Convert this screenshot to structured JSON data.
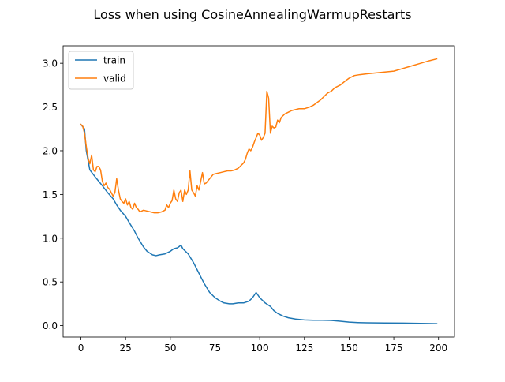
{
  "chart_data": {
    "type": "line",
    "title": "Loss when using CosineAnnealingWarmupRestarts",
    "xlabel": "",
    "ylabel": "",
    "xlim": [
      -9.95,
      208.95
    ],
    "ylim": [
      -0.13,
      3.2
    ],
    "xticks": [
      0,
      25,
      50,
      75,
      100,
      125,
      150,
      175,
      200
    ],
    "yticks": [
      0.0,
      0.5,
      1.0,
      1.5,
      2.0,
      2.5,
      3.0
    ],
    "xtick_labels": [
      "0",
      "25",
      "50",
      "75",
      "100",
      "125",
      "150",
      "175",
      "200"
    ],
    "ytick_labels": [
      "0.0",
      "0.5",
      "1.0",
      "1.5",
      "2.0",
      "2.5",
      "3.0"
    ],
    "grid": false,
    "legend": "upper-left",
    "series": [
      {
        "name": "train",
        "color": "#1f77b4",
        "points": [
          [
            0,
            2.3
          ],
          [
            2,
            2.25
          ],
          [
            3,
            2.0
          ],
          [
            5,
            1.78
          ],
          [
            8,
            1.7
          ],
          [
            10,
            1.65
          ],
          [
            12,
            1.6
          ],
          [
            15,
            1.52
          ],
          [
            18,
            1.45
          ],
          [
            20,
            1.38
          ],
          [
            22,
            1.32
          ],
          [
            25,
            1.25
          ],
          [
            27,
            1.18
          ],
          [
            30,
            1.08
          ],
          [
            32,
            1.0
          ],
          [
            35,
            0.9
          ],
          [
            37,
            0.85
          ],
          [
            40,
            0.81
          ],
          [
            42,
            0.8
          ],
          [
            44,
            0.81
          ],
          [
            47,
            0.82
          ],
          [
            50,
            0.85
          ],
          [
            52,
            0.88
          ],
          [
            54,
            0.89
          ],
          [
            56,
            0.92
          ],
          [
            57,
            0.88
          ],
          [
            60,
            0.82
          ],
          [
            63,
            0.72
          ],
          [
            66,
            0.6
          ],
          [
            69,
            0.48
          ],
          [
            72,
            0.38
          ],
          [
            75,
            0.32
          ],
          [
            78,
            0.28
          ],
          [
            80,
            0.26
          ],
          [
            83,
            0.25
          ],
          [
            85,
            0.25
          ],
          [
            88,
            0.26
          ],
          [
            91,
            0.26
          ],
          [
            94,
            0.28
          ],
          [
            96,
            0.32
          ],
          [
            98,
            0.38
          ],
          [
            100,
            0.32
          ],
          [
            103,
            0.26
          ],
          [
            106,
            0.22
          ],
          [
            108,
            0.17
          ],
          [
            110,
            0.14
          ],
          [
            113,
            0.11
          ],
          [
            116,
            0.09
          ],
          [
            120,
            0.075
          ],
          [
            125,
            0.065
          ],
          [
            130,
            0.062
          ],
          [
            135,
            0.062
          ],
          [
            140,
            0.06
          ],
          [
            145,
            0.05
          ],
          [
            150,
            0.04
          ],
          [
            155,
            0.035
          ],
          [
            160,
            0.032
          ],
          [
            170,
            0.03
          ],
          [
            180,
            0.029
          ],
          [
            190,
            0.026
          ],
          [
            199,
            0.022
          ]
        ]
      },
      {
        "name": "valid",
        "color": "#ff7f0e",
        "points": [
          [
            0,
            2.3
          ],
          [
            1,
            2.28
          ],
          [
            2,
            2.2
          ],
          [
            3,
            2.05
          ],
          [
            4,
            1.92
          ],
          [
            5,
            1.85
          ],
          [
            6,
            1.95
          ],
          [
            7,
            1.78
          ],
          [
            8,
            1.76
          ],
          [
            9,
            1.82
          ],
          [
            10,
            1.82
          ],
          [
            11,
            1.78
          ],
          [
            12,
            1.65
          ],
          [
            13,
            1.6
          ],
          [
            14,
            1.63
          ],
          [
            15,
            1.58
          ],
          [
            16,
            1.56
          ],
          [
            17,
            1.52
          ],
          [
            18,
            1.48
          ],
          [
            19,
            1.52
          ],
          [
            20,
            1.68
          ],
          [
            21,
            1.55
          ],
          [
            22,
            1.45
          ],
          [
            23,
            1.42
          ],
          [
            24,
            1.4
          ],
          [
            25,
            1.45
          ],
          [
            26,
            1.38
          ],
          [
            27,
            1.42
          ],
          [
            28,
            1.35
          ],
          [
            29,
            1.33
          ],
          [
            30,
            1.4
          ],
          [
            31,
            1.35
          ],
          [
            32,
            1.33
          ],
          [
            33,
            1.3
          ],
          [
            35,
            1.32
          ],
          [
            37,
            1.31
          ],
          [
            39,
            1.3
          ],
          [
            41,
            1.29
          ],
          [
            43,
            1.29
          ],
          [
            45,
            1.3
          ],
          [
            47,
            1.32
          ],
          [
            48,
            1.38
          ],
          [
            49,
            1.35
          ],
          [
            50,
            1.4
          ],
          [
            51,
            1.43
          ],
          [
            52,
            1.55
          ],
          [
            53,
            1.45
          ],
          [
            54,
            1.42
          ],
          [
            55,
            1.52
          ],
          [
            56,
            1.55
          ],
          [
            57,
            1.42
          ],
          [
            58,
            1.55
          ],
          [
            59,
            1.5
          ],
          [
            60,
            1.55
          ],
          [
            61,
            1.77
          ],
          [
            62,
            1.55
          ],
          [
            63,
            1.52
          ],
          [
            64,
            1.48
          ],
          [
            65,
            1.6
          ],
          [
            66,
            1.55
          ],
          [
            67,
            1.65
          ],
          [
            68,
            1.75
          ],
          [
            69,
            1.62
          ],
          [
            70,
            1.63
          ],
          [
            72,
            1.68
          ],
          [
            74,
            1.73
          ],
          [
            76,
            1.74
          ],
          [
            78,
            1.75
          ],
          [
            80,
            1.76
          ],
          [
            82,
            1.77
          ],
          [
            84,
            1.77
          ],
          [
            86,
            1.78
          ],
          [
            88,
            1.8
          ],
          [
            90,
            1.84
          ],
          [
            91,
            1.86
          ],
          [
            92,
            1.9
          ],
          [
            93,
            1.97
          ],
          [
            94,
            2.02
          ],
          [
            95,
            2.0
          ],
          [
            96,
            2.04
          ],
          [
            97,
            2.1
          ],
          [
            98,
            2.15
          ],
          [
            99,
            2.2
          ],
          [
            100,
            2.18
          ],
          [
            101,
            2.12
          ],
          [
            102,
            2.15
          ],
          [
            103,
            2.2
          ],
          [
            104,
            2.68
          ],
          [
            105,
            2.6
          ],
          [
            106,
            2.2
          ],
          [
            107,
            2.28
          ],
          [
            108,
            2.26
          ],
          [
            109,
            2.27
          ],
          [
            110,
            2.35
          ],
          [
            111,
            2.32
          ],
          [
            112,
            2.38
          ],
          [
            114,
            2.42
          ],
          [
            116,
            2.44
          ],
          [
            118,
            2.46
          ],
          [
            120,
            2.47
          ],
          [
            122,
            2.48
          ],
          [
            125,
            2.48
          ],
          [
            128,
            2.5
          ],
          [
            130,
            2.52
          ],
          [
            132,
            2.55
          ],
          [
            134,
            2.58
          ],
          [
            136,
            2.62
          ],
          [
            138,
            2.66
          ],
          [
            140,
            2.68
          ],
          [
            142,
            2.72
          ],
          [
            145,
            2.75
          ],
          [
            148,
            2.8
          ],
          [
            150,
            2.83
          ],
          [
            153,
            2.86
          ],
          [
            156,
            2.87
          ],
          [
            160,
            2.88
          ],
          [
            165,
            2.89
          ],
          [
            170,
            2.9
          ],
          [
            175,
            2.91
          ],
          [
            180,
            2.94
          ],
          [
            185,
            2.97
          ],
          [
            190,
            3.0
          ],
          [
            195,
            3.03
          ],
          [
            199,
            3.05
          ]
        ]
      }
    ]
  }
}
